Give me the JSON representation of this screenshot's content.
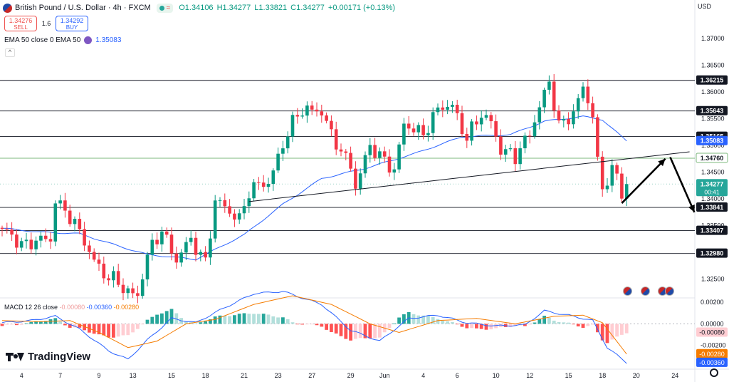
{
  "header": {
    "symbol": "British Pound / U.S. Dollar · 4h · FXCM",
    "wave_glyph": "≈",
    "open": "O1.34106",
    "high": "H1.34277",
    "low": "L1.33821",
    "close": "C1.34277",
    "change": "+0.00171 (+0.13%)"
  },
  "trade": {
    "sell_price": "1.34276",
    "sell_label": "SELL",
    "spread": "1.6",
    "buy_price": "1.34292",
    "buy_label": "BUY"
  },
  "ema_legend": {
    "label": "EMA 50 close 0 EMA 50",
    "value": "1.35083"
  },
  "collapse_glyph": "^",
  "currency": "USD",
  "macd_legend": {
    "label": "MACD 12 26 close",
    "hist": "-0.00080",
    "macd": "-0.00360",
    "signal": "-0.00280"
  },
  "logo_text": "TradingView",
  "colors": {
    "up": "#089981",
    "down": "#f23645",
    "ema": "#2962ff",
    "signal": "#f57c00",
    "line": "#131722",
    "green_level": "#7cb87c"
  },
  "chart_data": {
    "type": "candlestick",
    "title": "British Pound / U.S. Dollar · 4h · FXCM",
    "ylim": [
      1.3215,
      1.3745
    ],
    "y_ticks": [
      1.37,
      1.365,
      1.36,
      1.355,
      1.35,
      1.345,
      1.34,
      1.335,
      1.33,
      1.325
    ],
    "y_tick_labels": [
      "1.37000",
      "1.36500",
      "1.36000",
      "1.35500",
      "1.35000",
      "1.34500",
      "1.34000",
      "1.33500",
      "1.33000",
      "1.32500"
    ],
    "x_ticks": [
      {
        "label": "4",
        "bar": 4
      },
      {
        "label": "7",
        "bar": 12
      },
      {
        "label": "9",
        "bar": 20
      },
      {
        "label": "13",
        "bar": 27
      },
      {
        "label": "15",
        "bar": 35
      },
      {
        "label": "18",
        "bar": 42
      },
      {
        "label": "21",
        "bar": 50
      },
      {
        "label": "23",
        "bar": 57
      },
      {
        "label": "27",
        "bar": 64
      },
      {
        "label": "29",
        "bar": 72
      },
      {
        "label": "Jun",
        "bar": 79
      },
      {
        "label": "4",
        "bar": 87
      },
      {
        "label": "6",
        "bar": 94
      },
      {
        "label": "10",
        "bar": 102
      },
      {
        "label": "12",
        "bar": 109
      },
      {
        "label": "15",
        "bar": 117
      },
      {
        "label": "18",
        "bar": 124
      },
      {
        "label": "20",
        "bar": 131
      },
      {
        "label": "24",
        "bar": 139
      }
    ],
    "horizontal_levels": [
      {
        "value": 1.36215,
        "label": "1.36215"
      },
      {
        "value": 1.35643,
        "label": "1.35643"
      },
      {
        "value": 1.35165,
        "label": "1.35165"
      },
      {
        "value": 1.33841,
        "label": "1.33841"
      },
      {
        "value": 1.33407,
        "label": "1.33407"
      },
      {
        "value": 1.3298,
        "label": "1.32980"
      }
    ],
    "green_level": {
      "value": 1.3476,
      "label": "1.34760"
    },
    "ema_label": {
      "value": 1.35083,
      "label": "1.35083"
    },
    "last_price": {
      "value": 1.34277,
      "label": "1.34277",
      "countdown": "00:41"
    },
    "trendline": {
      "from": {
        "bar": 51,
        "value": 1.3395
      },
      "to": {
        "bar": 142,
        "value": 1.3488
      }
    },
    "projection_arrows": [
      {
        "from": {
          "bar": 128,
          "value": 1.3392
        },
        "to": {
          "bar": 137,
          "value": 1.3475
        }
      },
      {
        "from": {
          "bar": 138,
          "value": 1.3478
        },
        "to": {
          "bar": 143,
          "value": 1.3375
        }
      }
    ],
    "ema_anchors": [
      {
        "bar": 0,
        "value": 1.3345
      },
      {
        "bar": 8,
        "value": 1.3338
      },
      {
        "bar": 16,
        "value": 1.3335
      },
      {
        "bar": 24,
        "value": 1.3312
      },
      {
        "bar": 30,
        "value": 1.3296
      },
      {
        "bar": 40,
        "value": 1.3287
      },
      {
        "bar": 50,
        "value": 1.3333
      },
      {
        "bar": 58,
        "value": 1.339
      },
      {
        "bar": 66,
        "value": 1.3438
      },
      {
        "bar": 75,
        "value": 1.3457
      },
      {
        "bar": 85,
        "value": 1.3484
      },
      {
        "bar": 95,
        "value": 1.3516
      },
      {
        "bar": 105,
        "value": 1.352
      },
      {
        "bar": 112,
        "value": 1.3545
      },
      {
        "bar": 120,
        "value": 1.3554
      },
      {
        "bar": 124,
        "value": 1.3548
      },
      {
        "bar": 129,
        "value": 1.3508
      }
    ],
    "close_anchors": [
      {
        "bar": 0,
        "value": 1.334
      },
      {
        "bar": 5,
        "value": 1.3315
      },
      {
        "bar": 10,
        "value": 1.3325
      },
      {
        "bar": 11,
        "value": 1.3402
      },
      {
        "bar": 14,
        "value": 1.3365
      },
      {
        "bar": 18,
        "value": 1.3305
      },
      {
        "bar": 21,
        "value": 1.3258
      },
      {
        "bar": 25,
        "value": 1.3235
      },
      {
        "bar": 28,
        "value": 1.322
      },
      {
        "bar": 30,
        "value": 1.329
      },
      {
        "bar": 33,
        "value": 1.3345
      },
      {
        "bar": 36,
        "value": 1.3285
      },
      {
        "bar": 39,
        "value": 1.3322
      },
      {
        "bar": 42,
        "value": 1.3285
      },
      {
        "bar": 44,
        "value": 1.3395
      },
      {
        "bar": 47,
        "value": 1.3375
      },
      {
        "bar": 49,
        "value": 1.3365
      },
      {
        "bar": 51,
        "value": 1.3415
      },
      {
        "bar": 55,
        "value": 1.343
      },
      {
        "bar": 58,
        "value": 1.3505
      },
      {
        "bar": 61,
        "value": 1.3555
      },
      {
        "bar": 63,
        "value": 1.357
      },
      {
        "bar": 66,
        "value": 1.3565
      },
      {
        "bar": 68,
        "value": 1.3515
      },
      {
        "bar": 72,
        "value": 1.3465
      },
      {
        "bar": 73,
        "value": 1.3425
      },
      {
        "bar": 76,
        "value": 1.3495
      },
      {
        "bar": 79,
        "value": 1.3475
      },
      {
        "bar": 81,
        "value": 1.3455
      },
      {
        "bar": 83,
        "value": 1.3535
      },
      {
        "bar": 87,
        "value": 1.3525
      },
      {
        "bar": 90,
        "value": 1.3565
      },
      {
        "bar": 93,
        "value": 1.3575
      },
      {
        "bar": 96,
        "value": 1.3515
      },
      {
        "bar": 99,
        "value": 1.3555
      },
      {
        "bar": 101,
        "value": 1.3545
      },
      {
        "bar": 103,
        "value": 1.3495
      },
      {
        "bar": 106,
        "value": 1.3475
      },
      {
        "bar": 109,
        "value": 1.3525
      },
      {
        "bar": 111,
        "value": 1.3575
      },
      {
        "bar": 113,
        "value": 1.3615
      },
      {
        "bar": 115,
        "value": 1.3535
      },
      {
        "bar": 118,
        "value": 1.3565
      },
      {
        "bar": 120,
        "value": 1.3605
      },
      {
        "bar": 122,
        "value": 1.3555
      },
      {
        "bar": 123,
        "value": 1.3465
      },
      {
        "bar": 124,
        "value": 1.3425
      },
      {
        "bar": 126,
        "value": 1.3455
      },
      {
        "bar": 127,
        "value": 1.3445
      },
      {
        "bar": 128,
        "value": 1.3402
      },
      {
        "bar": 129,
        "value": 1.3428
      }
    ],
    "macd": {
      "ylim": [
        -0.0042,
        0.0024
      ],
      "y_tick_labels": [
        "0.00200",
        "0.00000",
        "-0.00200"
      ],
      "y_ticks": [
        0.002,
        0.0,
        -0.002
      ],
      "hist_label": "-0.00080",
      "macd_label": "-0.00360",
      "signal_label": "-0.00280",
      "line_anchors": [
        {
          "bar": 0,
          "value": 0.0001
        },
        {
          "bar": 6,
          "value": 0.0003
        },
        {
          "bar": 11,
          "value": 0.0007
        },
        {
          "bar": 16,
          "value": -0.0005
        },
        {
          "bar": 22,
          "value": -0.0025
        },
        {
          "bar": 26,
          "value": -0.0033
        },
        {
          "bar": 30,
          "value": -0.0015
        },
        {
          "bar": 35,
          "value": 0.0005
        },
        {
          "bar": 40,
          "value": 0.0001
        },
        {
          "bar": 46,
          "value": 0.0015
        },
        {
          "bar": 52,
          "value": 0.0028
        },
        {
          "bar": 58,
          "value": 0.003
        },
        {
          "bar": 66,
          "value": 0.0018
        },
        {
          "bar": 72,
          "value": -0.0006
        },
        {
          "bar": 78,
          "value": -0.0016
        },
        {
          "bar": 84,
          "value": 0.0005
        },
        {
          "bar": 90,
          "value": 0.0008
        },
        {
          "bar": 96,
          "value": 0.0001
        },
        {
          "bar": 102,
          "value": -0.0002
        },
        {
          "bar": 108,
          "value": -0.0001
        },
        {
          "bar": 112,
          "value": 0.0012
        },
        {
          "bar": 118,
          "value": 0.0007
        },
        {
          "bar": 122,
          "value": 0.0003
        },
        {
          "bar": 125,
          "value": -0.0022
        },
        {
          "bar": 129,
          "value": -0.0036
        }
      ],
      "signal_anchors": [
        {
          "bar": 0,
          "value": 0.0003
        },
        {
          "bar": 8,
          "value": 0.0002
        },
        {
          "bar": 14,
          "value": 0.0003
        },
        {
          "bar": 20,
          "value": -0.0008
        },
        {
          "bar": 26,
          "value": -0.0022
        },
        {
          "bar": 32,
          "value": -0.0016
        },
        {
          "bar": 38,
          "value": 0.0
        },
        {
          "bar": 44,
          "value": 0.0004
        },
        {
          "bar": 52,
          "value": 0.0018
        },
        {
          "bar": 60,
          "value": 0.0026
        },
        {
          "bar": 68,
          "value": 0.0018
        },
        {
          "bar": 76,
          "value": 0.0
        },
        {
          "bar": 82,
          "value": -0.0008
        },
        {
          "bar": 90,
          "value": 0.0003
        },
        {
          "bar": 98,
          "value": 0.0005
        },
        {
          "bar": 106,
          "value": 0.0
        },
        {
          "bar": 114,
          "value": 0.0007
        },
        {
          "bar": 120,
          "value": 0.0008
        },
        {
          "bar": 124,
          "value": 0.0001
        },
        {
          "bar": 129,
          "value": -0.0028
        }
      ]
    }
  }
}
